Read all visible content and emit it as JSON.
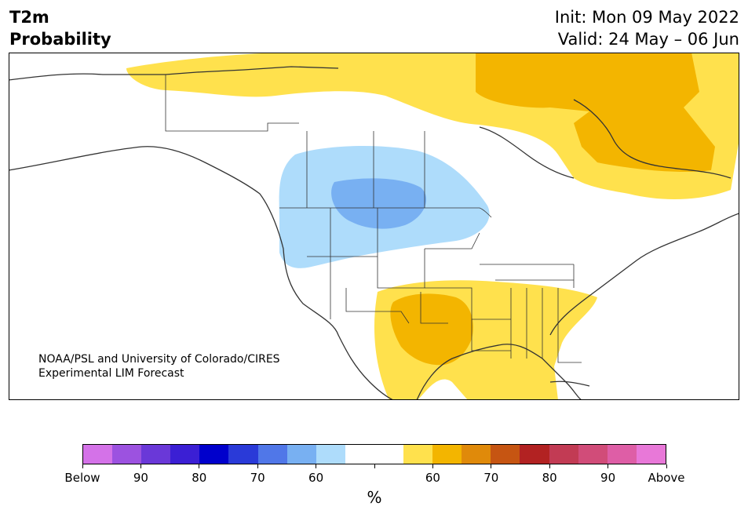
{
  "header": {
    "variable": "T2m",
    "product": "Probability",
    "init": "Init: Mon 09 May 2022",
    "valid": "Valid: 24 May – 06 Jun"
  },
  "credit": {
    "line1": "NOAA/PSL and University of Colorado/CIRES",
    "line2": "Experimental LIM Forecast"
  },
  "colorbar": {
    "colors": [
      "#d472e8",
      "#9c52e0",
      "#6a38d8",
      "#3b1fd4",
      "#0000cc",
      "#2a3ad8",
      "#5077e8",
      "#78b0f2",
      "#aedcfb",
      "#ffffff",
      "#ffffff",
      "#ffe14d",
      "#f3b500",
      "#e08a0a",
      "#c65512",
      "#b22222",
      "#c23b54",
      "#d14c79",
      "#de5ea6",
      "#e878d8"
    ],
    "tick_labels": [
      "Below",
      "90",
      "80",
      "70",
      "60",
      "",
      "60",
      "70",
      "80",
      "90",
      "Above"
    ],
    "unit": "%"
  },
  "map_colors": {
    "below_60": "#aedcfb",
    "below_70": "#78b0f2",
    "above_60": "#ffe14d",
    "above_70": "#f3b500",
    "land": "#ffffff",
    "border": "#333333"
  }
}
